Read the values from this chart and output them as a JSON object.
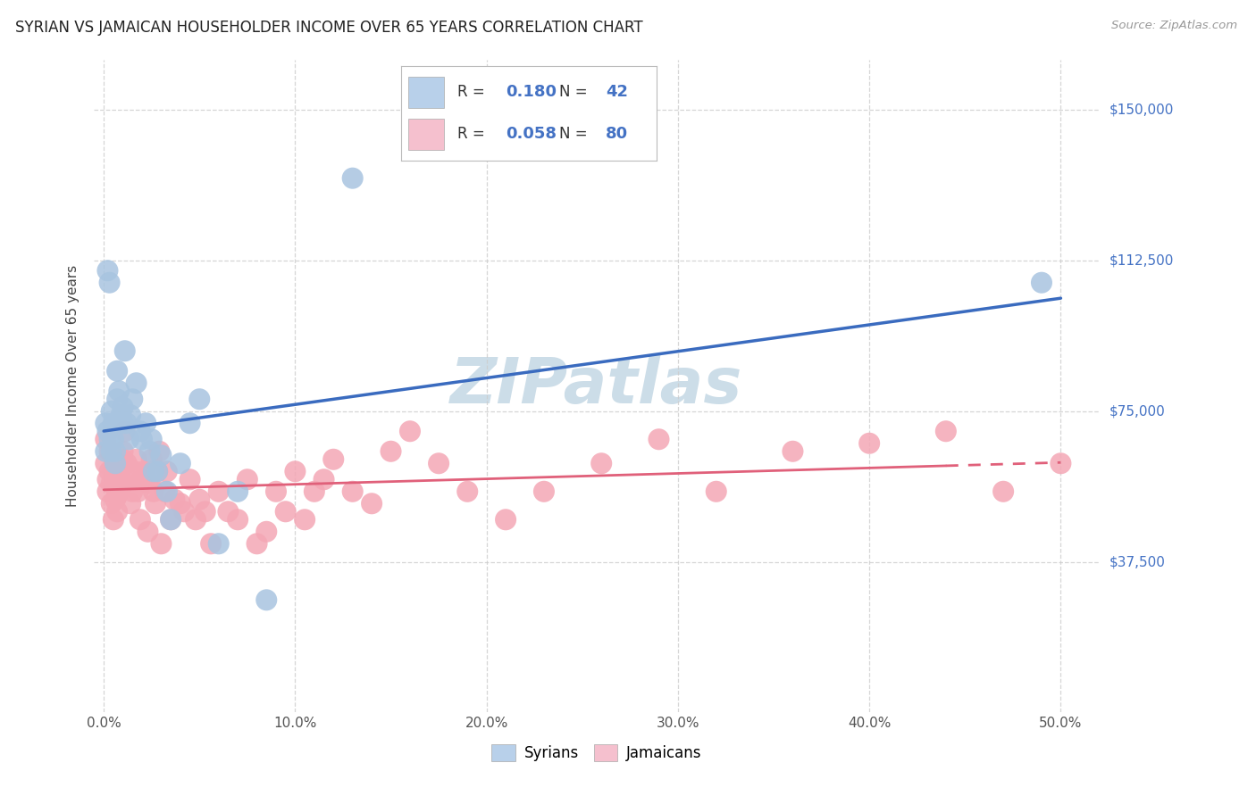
{
  "title": "SYRIAN VS JAMAICAN HOUSEHOLDER INCOME OVER 65 YEARS CORRELATION CHART",
  "source": "Source: ZipAtlas.com",
  "ylabel": "Householder Income Over 65 years",
  "ytick_vals": [
    37500,
    75000,
    112500,
    150000
  ],
  "ytick_labels": [
    "$37,500",
    "$75,000",
    "$112,500",
    "$150,000"
  ],
  "xtick_vals": [
    0.0,
    0.1,
    0.2,
    0.3,
    0.4,
    0.5
  ],
  "xtick_labels": [
    "0.0%",
    "10.0%",
    "20.0%",
    "30.0%",
    "40.0%",
    "50.0%"
  ],
  "ylim": [
    0,
    162500
  ],
  "xlim": [
    -0.005,
    0.52
  ],
  "syrian_R": "0.180",
  "syrian_N": "42",
  "jamaican_R": "0.058",
  "jamaican_N": "80",
  "syrian_color": "#a8c4e0",
  "jamaican_color": "#f4a7b5",
  "syrian_line_color": "#3a6bbf",
  "jamaican_line_color": "#e0607a",
  "syrian_legend_color": "#b8d0ea",
  "jamaican_legend_color": "#f5c0ce",
  "background_color": "#ffffff",
  "grid_color": "#cccccc",
  "watermark": "ZIPatlas",
  "watermark_color": "#ccdde8",
  "label_color": "#4472c4",
  "text_color": "#444444",
  "syrian_x": [
    0.001,
    0.001,
    0.002,
    0.002,
    0.003,
    0.003,
    0.004,
    0.004,
    0.005,
    0.005,
    0.006,
    0.006,
    0.007,
    0.007,
    0.008,
    0.009,
    0.01,
    0.01,
    0.011,
    0.012,
    0.013,
    0.014,
    0.015,
    0.017,
    0.019,
    0.02,
    0.022,
    0.024,
    0.025,
    0.026,
    0.028,
    0.03,
    0.033,
    0.035,
    0.04,
    0.045,
    0.05,
    0.06,
    0.07,
    0.085,
    0.13,
    0.49
  ],
  "syrian_y": [
    65000,
    72000,
    110000,
    70000,
    107000,
    68000,
    75000,
    65000,
    72000,
    68000,
    65000,
    62000,
    85000,
    78000,
    80000,
    74000,
    76000,
    72000,
    90000,
    72000,
    68000,
    74000,
    78000,
    82000,
    70000,
    68000,
    72000,
    65000,
    68000,
    60000,
    60000,
    64000,
    55000,
    48000,
    62000,
    72000,
    78000,
    42000,
    55000,
    28000,
    133000,
    107000
  ],
  "jamaican_x": [
    0.001,
    0.001,
    0.002,
    0.002,
    0.003,
    0.003,
    0.004,
    0.004,
    0.005,
    0.005,
    0.006,
    0.006,
    0.007,
    0.007,
    0.008,
    0.008,
    0.009,
    0.009,
    0.01,
    0.01,
    0.011,
    0.012,
    0.013,
    0.014,
    0.015,
    0.016,
    0.017,
    0.018,
    0.019,
    0.02,
    0.021,
    0.022,
    0.023,
    0.024,
    0.025,
    0.026,
    0.027,
    0.028,
    0.029,
    0.03,
    0.032,
    0.033,
    0.035,
    0.037,
    0.04,
    0.042,
    0.045,
    0.048,
    0.05,
    0.053,
    0.056,
    0.06,
    0.065,
    0.07,
    0.075,
    0.08,
    0.085,
    0.09,
    0.095,
    0.1,
    0.105,
    0.11,
    0.115,
    0.12,
    0.13,
    0.14,
    0.15,
    0.16,
    0.175,
    0.19,
    0.21,
    0.23,
    0.26,
    0.29,
    0.32,
    0.36,
    0.4,
    0.44,
    0.47,
    0.5
  ],
  "jamaican_y": [
    62000,
    68000,
    58000,
    55000,
    60000,
    65000,
    52000,
    57000,
    48000,
    60000,
    53000,
    58000,
    50000,
    54000,
    62000,
    60000,
    58000,
    56000,
    63000,
    65000,
    70000,
    62000,
    58000,
    52000,
    55000,
    60000,
    63000,
    55000,
    48000,
    58000,
    60000,
    58000,
    45000,
    57000,
    63000,
    55000,
    52000,
    60000,
    65000,
    42000,
    55000,
    60000,
    48000,
    53000,
    52000,
    50000,
    58000,
    48000,
    53000,
    50000,
    42000,
    55000,
    50000,
    48000,
    58000,
    42000,
    45000,
    55000,
    50000,
    60000,
    48000,
    55000,
    58000,
    63000,
    55000,
    52000,
    65000,
    70000,
    62000,
    55000,
    48000,
    55000,
    62000,
    68000,
    55000,
    65000,
    67000,
    70000,
    55000,
    62000
  ]
}
